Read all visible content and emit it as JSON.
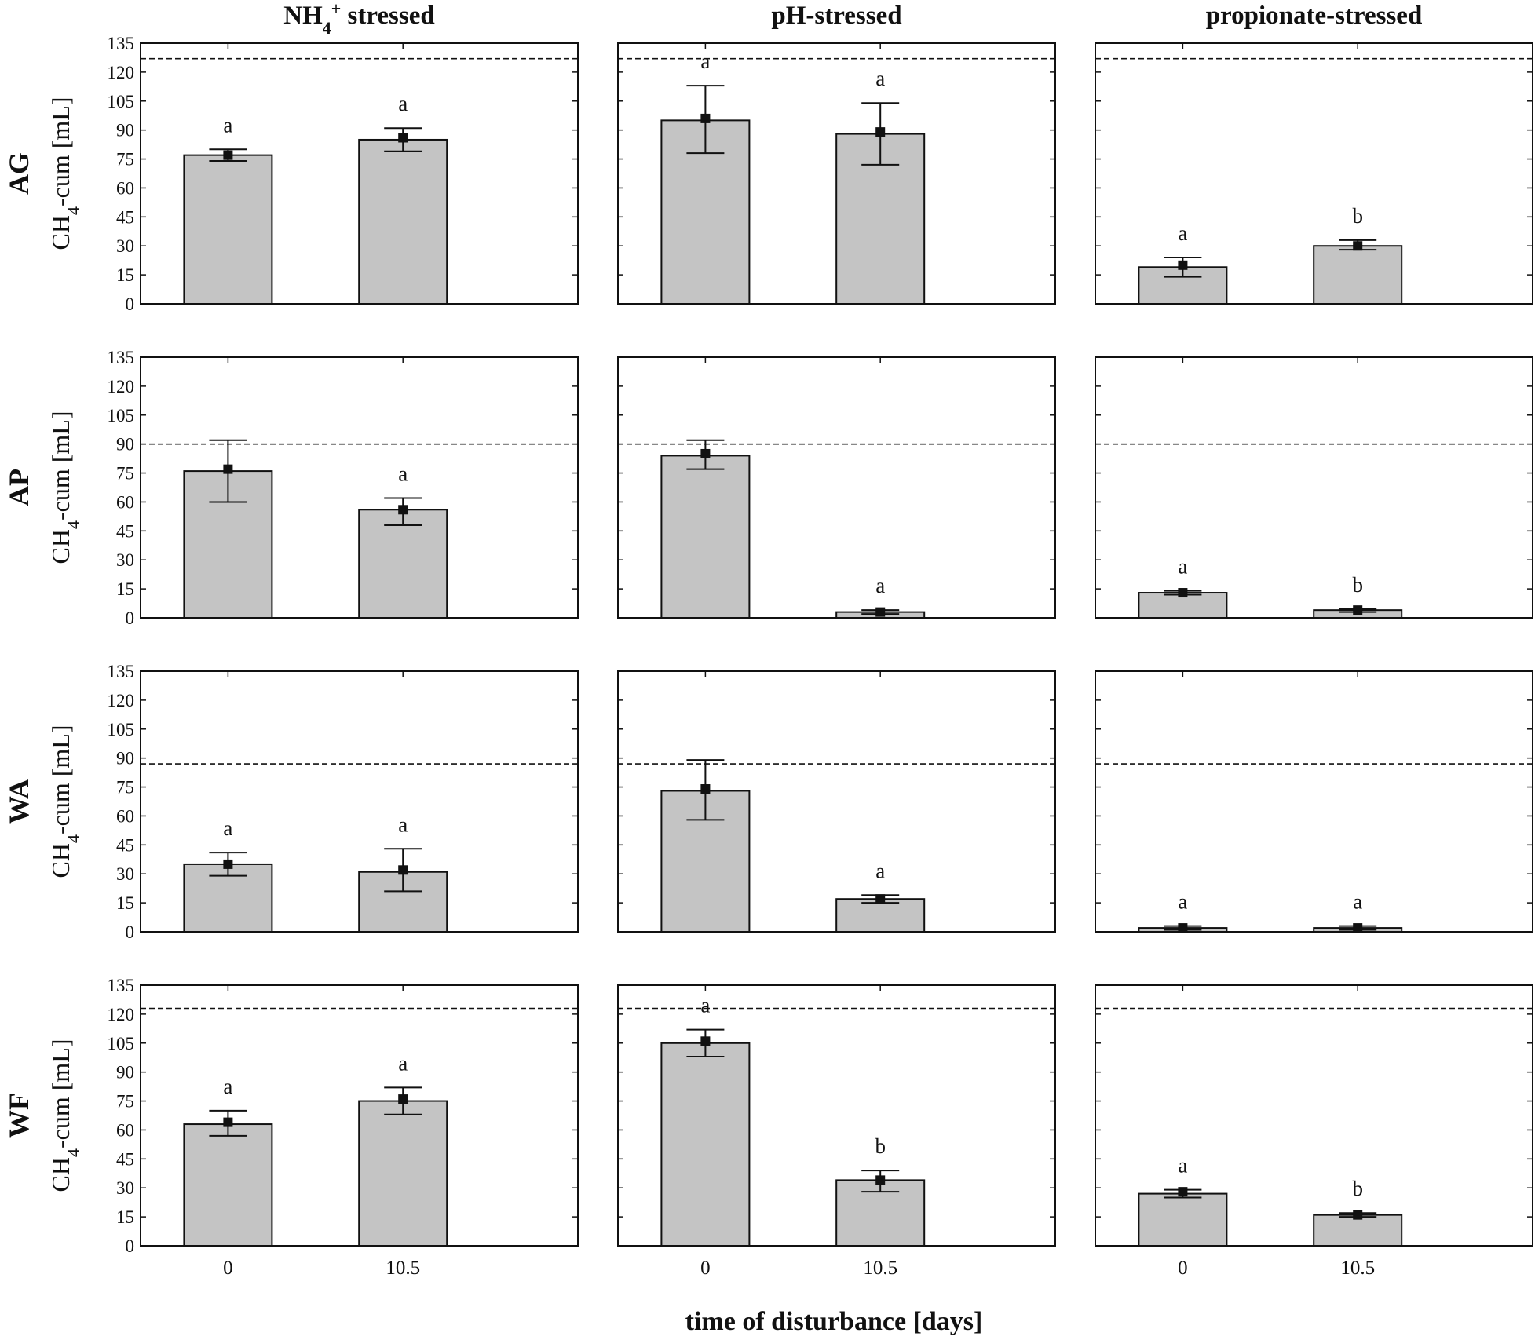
{
  "chart_data": {
    "type": "bar",
    "title": "",
    "column_titles": [
      {
        "main": "NH",
        "sub": "4",
        "sup": "+",
        "rest": " stressed"
      },
      {
        "main": "pH-stressed"
      },
      {
        "main": "propionate-stressed"
      }
    ],
    "row_labels": [
      "AG",
      "AP",
      "WA",
      "WF"
    ],
    "ylabel": {
      "pre": "CH",
      "sub": "4",
      "post": "-cum [mL]"
    },
    "xlabel": "time of disturbance [days]",
    "categories": [
      "0",
      "10.5"
    ],
    "ylim": [
      0,
      135
    ],
    "yticks": [
      0,
      15,
      30,
      45,
      60,
      75,
      90,
      105,
      120,
      135
    ],
    "reference_lines": [
      127,
      90,
      87,
      123
    ],
    "grid": false,
    "panels": [
      {
        "row": "AG",
        "column": "NH4+ stressed",
        "bars": [
          77,
          85
        ],
        "means": [
          77,
          86
        ],
        "err_low": [
          74,
          79
        ],
        "err_high": [
          80,
          91
        ],
        "sig": [
          "a",
          "a"
        ]
      },
      {
        "row": "AG",
        "column": "pH-stressed",
        "bars": [
          95,
          88
        ],
        "means": [
          96,
          89
        ],
        "err_low": [
          78,
          72
        ],
        "err_high": [
          113,
          104
        ],
        "sig": [
          "a",
          "a"
        ]
      },
      {
        "row": "AG",
        "column": "propionate-stressed",
        "bars": [
          19,
          30
        ],
        "means": [
          20,
          30
        ],
        "err_low": [
          14,
          28
        ],
        "err_high": [
          24,
          33
        ],
        "sig": [
          "a",
          "b"
        ]
      },
      {
        "row": "AP",
        "column": "NH4+ stressed",
        "bars": [
          76,
          56
        ],
        "means": [
          77,
          56
        ],
        "err_low": [
          60,
          48
        ],
        "err_high": [
          92,
          62
        ],
        "sig": [
          "",
          "a"
        ]
      },
      {
        "row": "AP",
        "column": "pH-stressed",
        "bars": [
          84,
          3
        ],
        "means": [
          85,
          3
        ],
        "err_low": [
          77,
          2
        ],
        "err_high": [
          92,
          4
        ],
        "sig": [
          "",
          "a"
        ]
      },
      {
        "row": "AP",
        "column": "propionate-stressed",
        "bars": [
          13,
          4
        ],
        "means": [
          13,
          4
        ],
        "err_low": [
          12,
          3
        ],
        "err_high": [
          14,
          4.5
        ],
        "sig": [
          "a",
          "b"
        ]
      },
      {
        "row": "WA",
        "column": "NH4+ stressed",
        "bars": [
          35,
          31
        ],
        "means": [
          35,
          32
        ],
        "err_low": [
          29,
          21
        ],
        "err_high": [
          41,
          43
        ],
        "sig": [
          "a",
          "a"
        ]
      },
      {
        "row": "WA",
        "column": "pH-stressed",
        "bars": [
          73,
          17
        ],
        "means": [
          74,
          17
        ],
        "err_low": [
          58,
          15
        ],
        "err_high": [
          89,
          19
        ],
        "sig": [
          "",
          "a"
        ]
      },
      {
        "row": "WA",
        "column": "propionate-stressed",
        "bars": [
          2,
          2
        ],
        "means": [
          2,
          2
        ],
        "err_low": [
          1,
          1
        ],
        "err_high": [
          3,
          3
        ],
        "sig": [
          "a",
          "a"
        ]
      },
      {
        "row": "WF",
        "column": "NH4+ stressed",
        "bars": [
          63,
          75
        ],
        "means": [
          64,
          76
        ],
        "err_low": [
          57,
          68
        ],
        "err_high": [
          70,
          82
        ],
        "sig": [
          "a",
          "a"
        ]
      },
      {
        "row": "WF",
        "column": "pH-stressed",
        "bars": [
          105,
          34
        ],
        "means": [
          106,
          34
        ],
        "err_low": [
          98,
          28
        ],
        "err_high": [
          112,
          39
        ],
        "sig": [
          "a",
          "b"
        ]
      },
      {
        "row": "WF",
        "column": "propionate-stressed",
        "bars": [
          27,
          16
        ],
        "means": [
          28,
          16
        ],
        "err_low": [
          25,
          15
        ],
        "err_high": [
          29,
          17
        ],
        "sig": [
          "a",
          "b"
        ]
      }
    ]
  }
}
